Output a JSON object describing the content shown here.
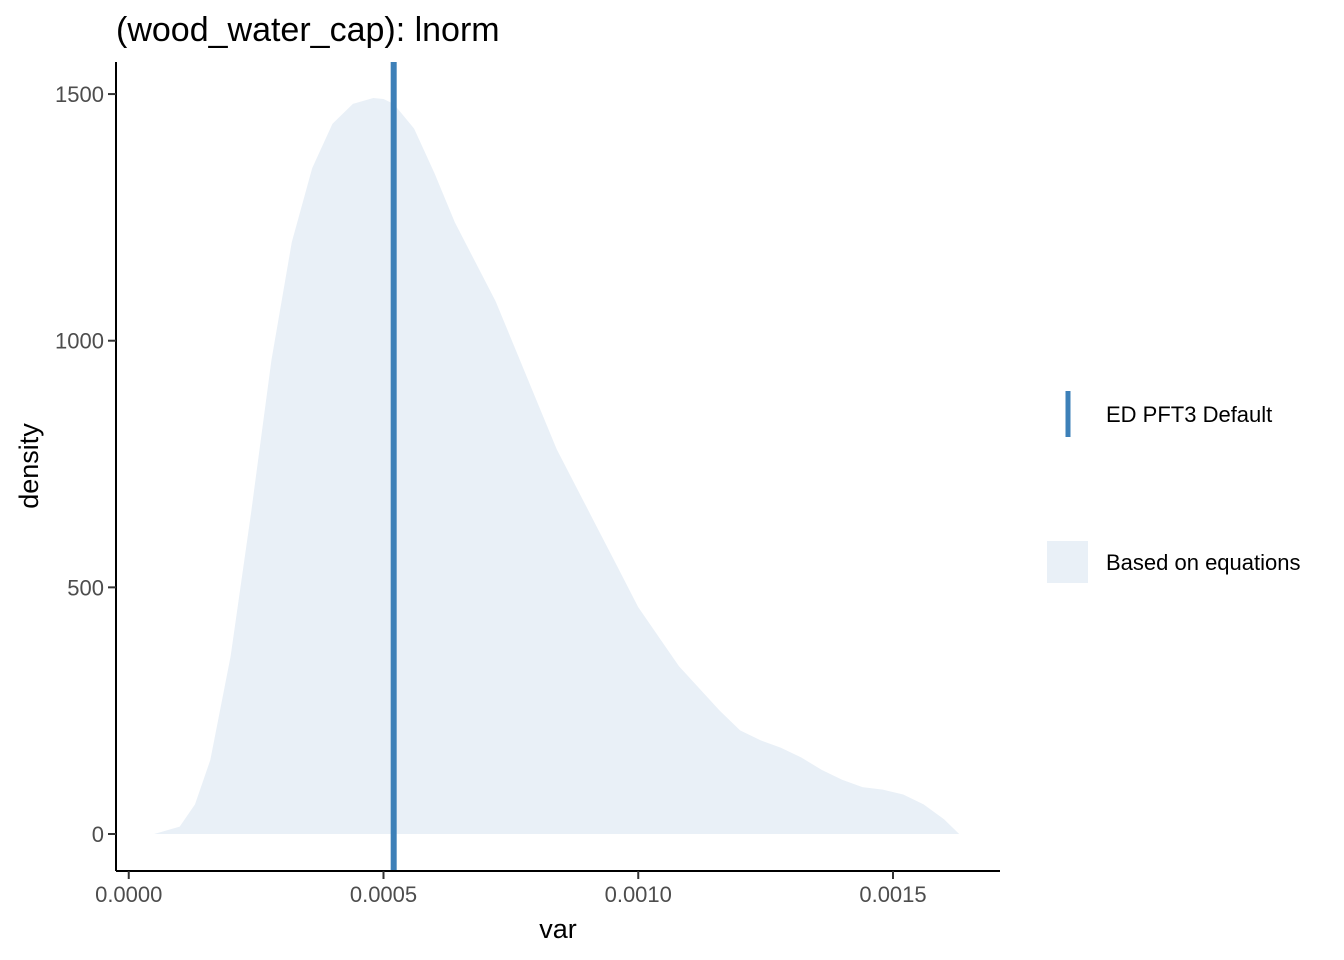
{
  "chart_data": {
    "type": "area",
    "title": "(wood_water_cap): lnorm",
    "xlabel": "var",
    "ylabel": "density",
    "xlim": [
      -2.5e-05,
      0.00171
    ],
    "ylim": [
      -75,
      1565
    ],
    "x_ticks": [
      0.0,
      0.0005,
      0.001,
      0.0015
    ],
    "x_tick_labels": [
      "0.0000",
      "0.0005",
      "0.0010",
      "0.0015"
    ],
    "y_ticks": [
      0,
      500,
      1000,
      1500
    ],
    "y_tick_labels": [
      "0",
      "500",
      "1000",
      "1500"
    ],
    "grid": false,
    "legend_position": "right",
    "series": [
      {
        "name": "Based on equations",
        "kind": "density",
        "color": "#e9f0f7",
        "x": [
          5e-05,
          0.0001,
          0.00013,
          0.00016,
          0.0002,
          0.00024,
          0.00028,
          0.00032,
          0.00036,
          0.0004,
          0.00044,
          0.00048,
          0.0005,
          0.00052,
          0.00056,
          0.0006,
          0.00064,
          0.00068,
          0.00072,
          0.00076,
          0.0008,
          0.00084,
          0.00088,
          0.00092,
          0.00096,
          0.001,
          0.00104,
          0.00108,
          0.00112,
          0.00116,
          0.0012,
          0.00124,
          0.00128,
          0.00132,
          0.00136,
          0.0014,
          0.00144,
          0.00148,
          0.00152,
          0.00156,
          0.0016,
          0.00163
        ],
        "y": [
          0,
          15,
          60,
          150,
          360,
          650,
          960,
          1200,
          1350,
          1440,
          1480,
          1492,
          1490,
          1480,
          1430,
          1340,
          1240,
          1160,
          1080,
          980,
          880,
          780,
          700,
          620,
          540,
          460,
          400,
          340,
          295,
          250,
          210,
          190,
          175,
          155,
          130,
          110,
          95,
          90,
          80,
          60,
          30,
          0
        ]
      }
    ],
    "reference_lines": [
      {
        "name": "ED PFT3 Default",
        "x": 0.00052,
        "color": "#3d80b8"
      }
    ]
  }
}
